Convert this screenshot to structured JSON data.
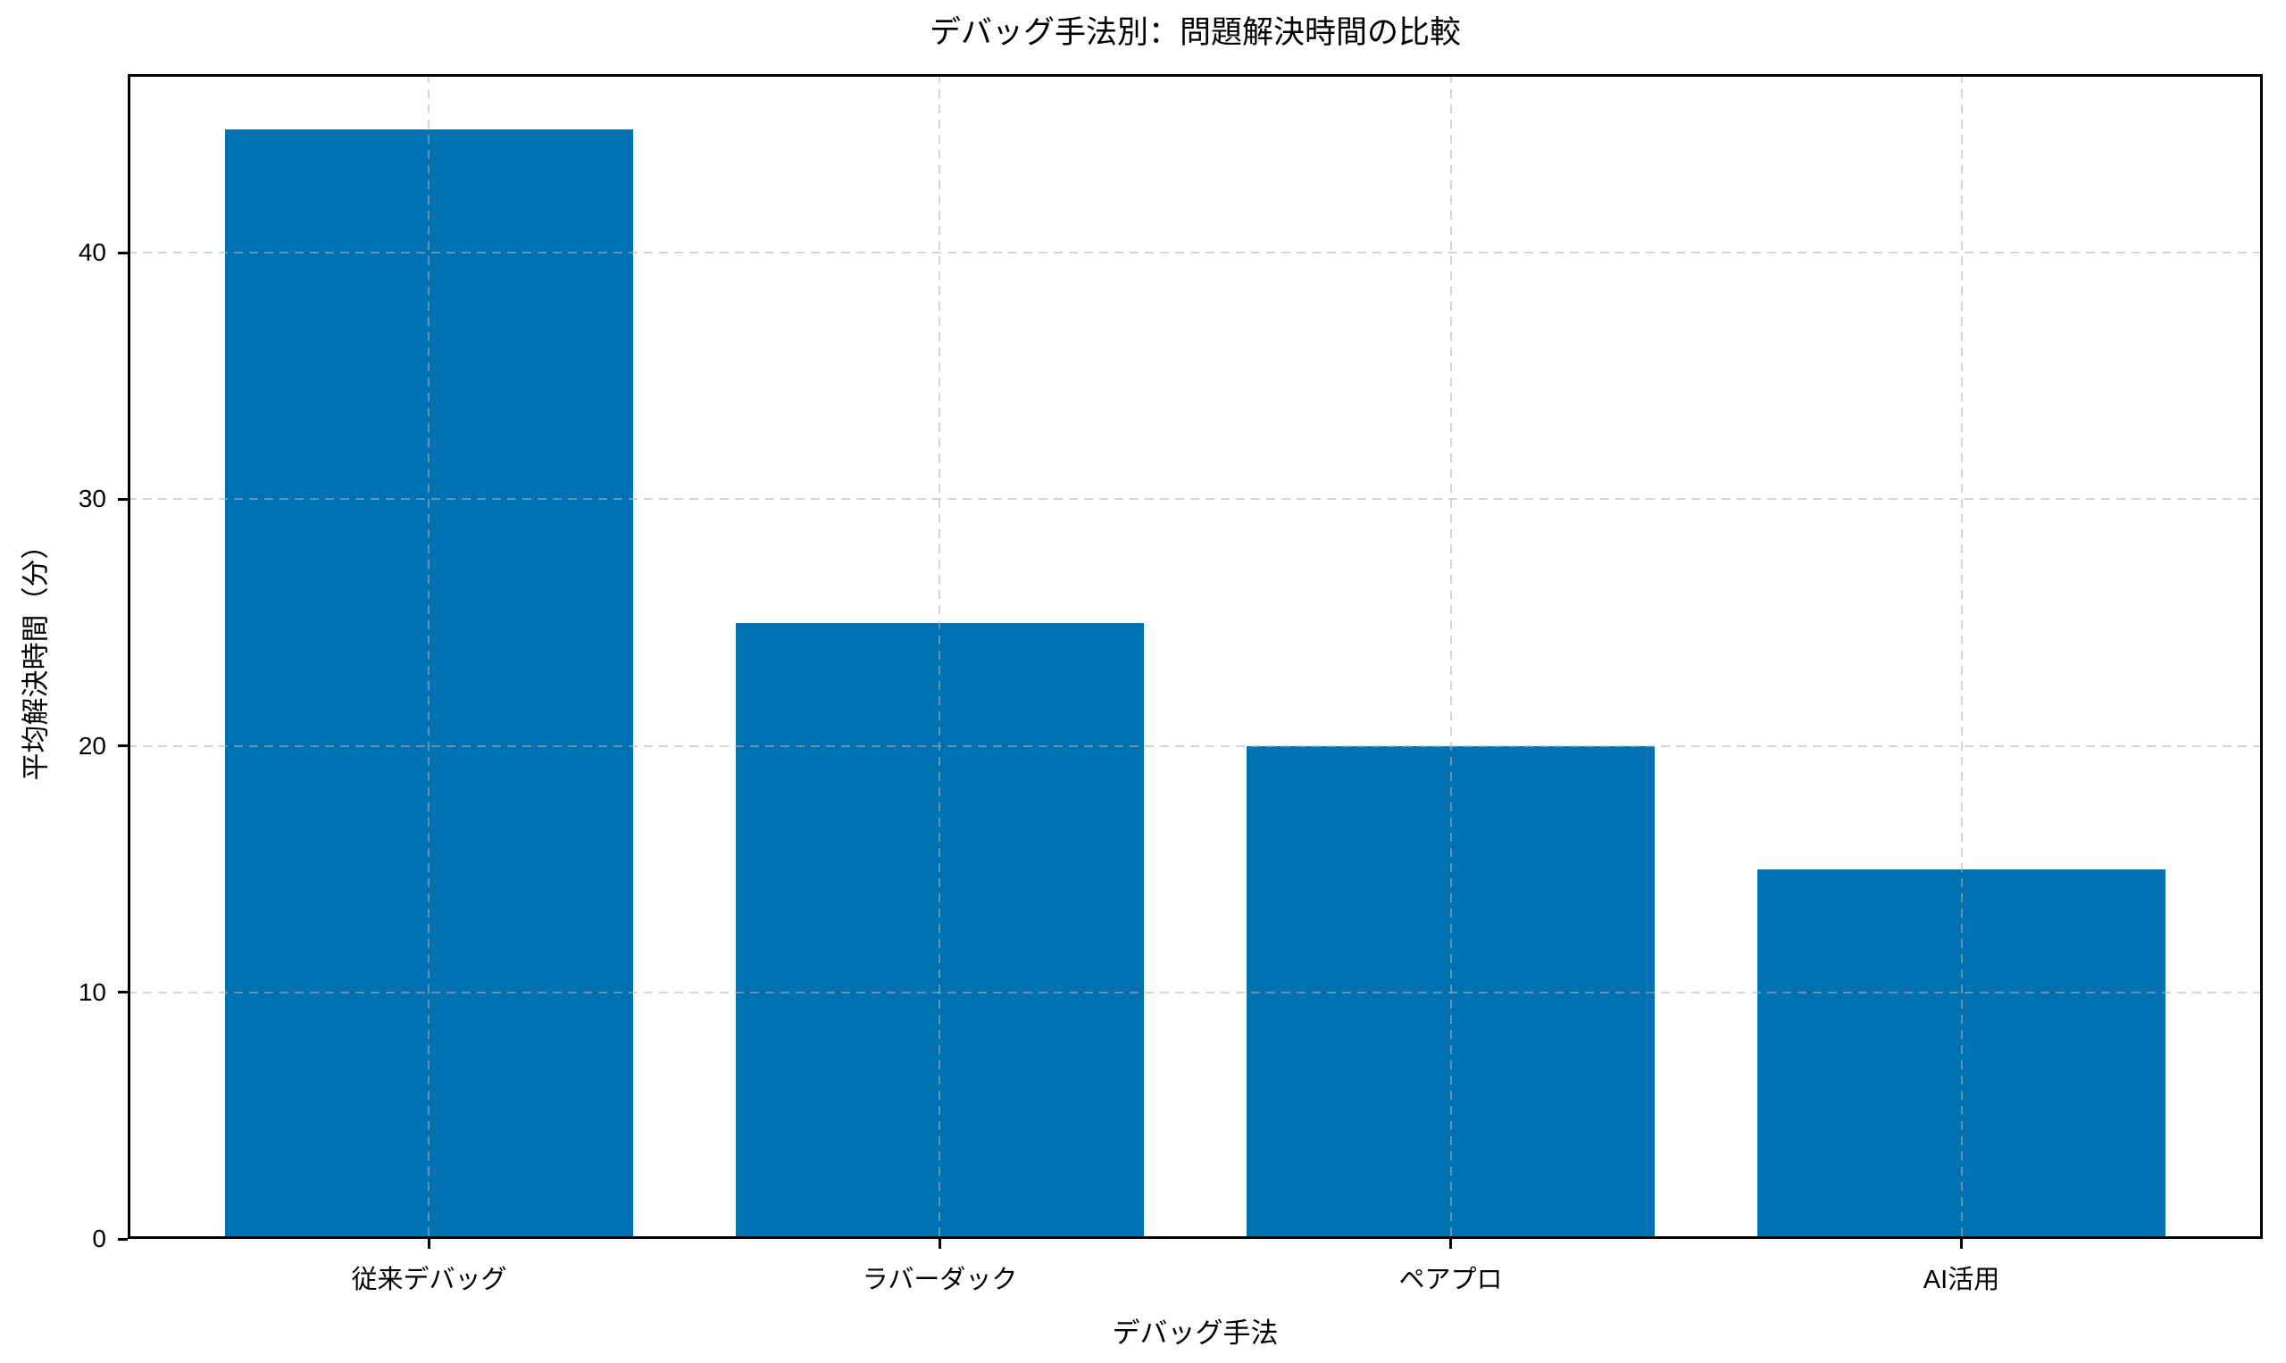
{
  "chart_data": {
    "type": "bar",
    "title": "デバッグ手法別：問題解決時間の比較",
    "xlabel": "デバッグ手法",
    "ylabel": "平均解決時間（分）",
    "categories": [
      "従来デバッグ",
      "ラバーダック",
      "ペアプロ",
      "AI活用"
    ],
    "values": [
      45,
      25,
      20,
      15
    ],
    "yticks": [
      0,
      10,
      20,
      30,
      40
    ],
    "ylim": [
      0,
      47.25
    ],
    "xlim": [
      -0.59,
      3.59
    ],
    "bar_width": 0.8,
    "bar_color": "#0072B2",
    "grid": "both-dashed-over-bars",
    "spine_color": "#000000",
    "background": "#ffffff",
    "legend": "none"
  }
}
